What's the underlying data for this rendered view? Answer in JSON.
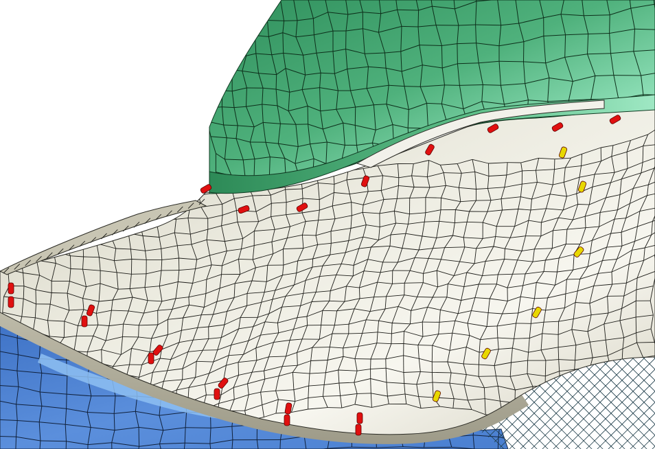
{
  "scene": {
    "description_visible_text": "",
    "colors": {
      "background": "#ffffff",
      "upper_part": "#3f9e6c",
      "upper_part_highlight": "#8fe0b8",
      "middle_part": "#dcdacb",
      "middle_part_shadow": "#a9a796",
      "lower_part": "#4a7fd0",
      "lower_part_highlight": "#8ec0f2",
      "wireframe": "#1f3e4a",
      "mesh_lines": "#1a1a1a",
      "weld_red": "#e01010",
      "weld_yellow": "#e8d800"
    },
    "icons": [
      "red-weld-marker",
      "yellow-weld-marker",
      "wireframe-mesh"
    ]
  }
}
